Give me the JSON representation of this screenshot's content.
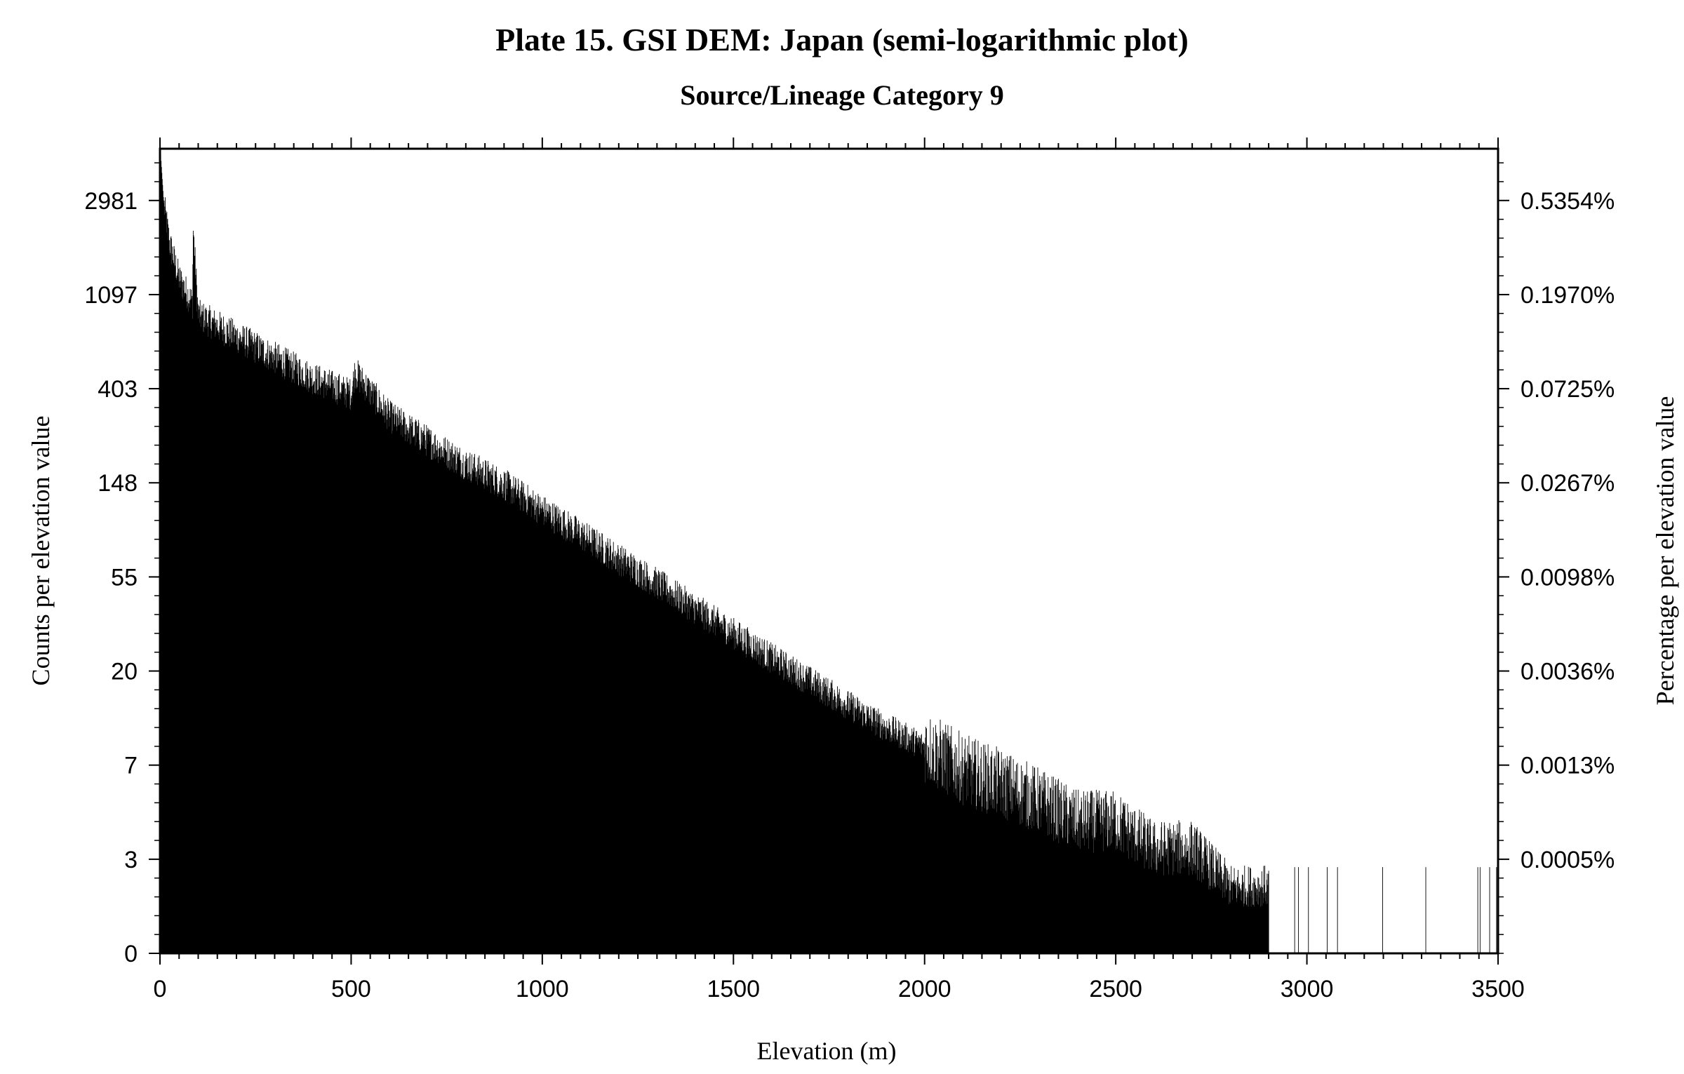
{
  "chart_data": {
    "type": "bar",
    "title": "Plate 15. GSI DEM: Japan (semi-logarithmic plot)",
    "subtitle": "Source/Lineage Category 9",
    "xlabel": "Elevation (m)",
    "ylabel": "Counts per elevation value",
    "y2label": "Percentage per elevation value",
    "xlim": [
      0,
      3500
    ],
    "x_ticks": [
      "0",
      "500",
      "1000",
      "1500",
      "2000",
      "2500",
      "3000",
      "3500"
    ],
    "y_scale": "semi-logarithmic (log of count + 1)",
    "y_ticks": [
      "0",
      "3",
      "7",
      "20",
      "55",
      "148",
      "403",
      "1097",
      "2981"
    ],
    "y2_ticks": [
      "0.0005%",
      "0.0013%",
      "0.0036%",
      "0.0098%",
      "0.0267%",
      "0.0725%",
      "0.1970%",
      "0.5354%"
    ],
    "grid": false,
    "series": [
      {
        "values_description": "counts per 1 m elevation bin; envelope sampled below",
        "envelope": [
          {
            "x": 0,
            "y": 5500
          },
          {
            "x": 10,
            "y": 2900
          },
          {
            "x": 25,
            "y": 1900
          },
          {
            "x": 50,
            "y": 1300
          },
          {
            "x": 85,
            "y": 1000
          },
          {
            "x": 87,
            "y": 2200
          },
          {
            "x": 100,
            "y": 880
          },
          {
            "x": 200,
            "y": 700
          },
          {
            "x": 300,
            "y": 560
          },
          {
            "x": 400,
            "y": 450
          },
          {
            "x": 500,
            "y": 380
          },
          {
            "x": 510,
            "y": 480
          },
          {
            "x": 600,
            "y": 300
          },
          {
            "x": 700,
            "y": 230
          },
          {
            "x": 800,
            "y": 180
          },
          {
            "x": 900,
            "y": 145
          },
          {
            "x": 1000,
            "y": 110
          },
          {
            "x": 1100,
            "y": 85
          },
          {
            "x": 1200,
            "y": 65
          },
          {
            "x": 1300,
            "y": 50
          },
          {
            "x": 1400,
            "y": 38
          },
          {
            "x": 1500,
            "y": 29
          },
          {
            "x": 1600,
            "y": 22
          },
          {
            "x": 1700,
            "y": 17
          },
          {
            "x": 1800,
            "y": 13
          },
          {
            "x": 1900,
            "y": 10
          },
          {
            "x": 2000,
            "y": 8
          },
          {
            "x": 2100,
            "y": 6
          },
          {
            "x": 2200,
            "y": 5
          },
          {
            "x": 2300,
            "y": 4
          },
          {
            "x": 2400,
            "y": 3
          },
          {
            "x": 2500,
            "y": 3
          },
          {
            "x": 2600,
            "y": 2
          },
          {
            "x": 2700,
            "y": 2
          },
          {
            "x": 2800,
            "y": 1
          },
          {
            "x": 2900,
            "y": 1
          },
          {
            "x": 3000,
            "y": 0
          },
          {
            "x": 3500,
            "y": 0
          }
        ]
      }
    ]
  }
}
